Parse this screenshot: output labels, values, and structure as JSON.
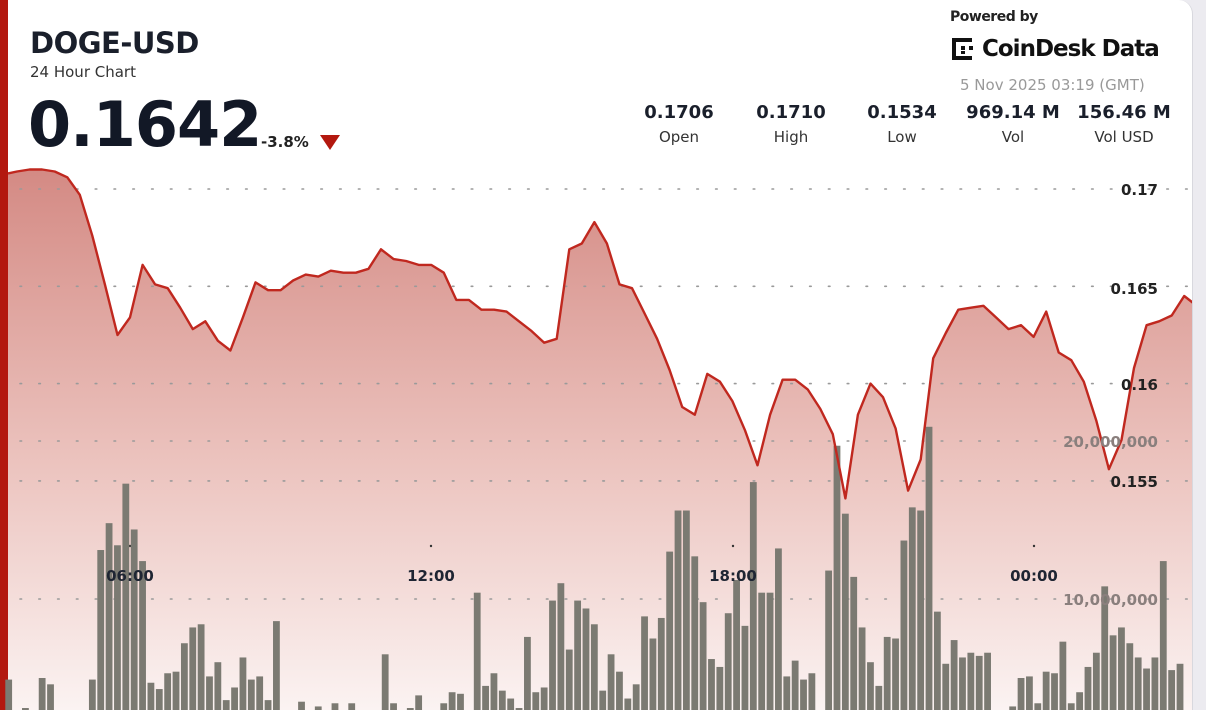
{
  "header": {
    "title": "DOGE-USD",
    "subtitle": "24 Hour Chart",
    "price": "0.1642",
    "change": "-3.8%",
    "change_direction": "down",
    "powered_by": "Powered by",
    "brand": "CoinDesk Data",
    "timestamp": "5 Nov 2025 03:19 (GMT)"
  },
  "stats": [
    {
      "value": "0.1706",
      "label": "Open"
    },
    {
      "value": "0.1710",
      "label": "High"
    },
    {
      "value": "0.1534",
      "label": "Low"
    },
    {
      "value": "969.14 M",
      "label": "Vol"
    },
    {
      "value": "156.46 M",
      "label": "Vol USD"
    }
  ],
  "colors": {
    "accent": "#b3180f",
    "line": "#c0281f",
    "fill_top": "#d48a84",
    "bars": "#7b7a72"
  },
  "chart_data": {
    "type": "area",
    "grid": true,
    "price_axis": {
      "ticks": [
        "0.17",
        "0.165",
        "0.16",
        "0.155"
      ],
      "tick_values": [
        0.17,
        0.165,
        0.16,
        0.155
      ]
    },
    "volume_axis": {
      "ticks": [
        "20,000,000",
        "10,000,000"
      ],
      "tick_values": [
        20000000,
        10000000
      ]
    },
    "time_axis": {
      "ticks": [
        "06:00",
        "12:00",
        "18:00",
        "00:00"
      ]
    },
    "price_series": {
      "start": "03:30",
      "interval_minutes": 15,
      "values": [
        0.1708,
        0.1709,
        0.171,
        0.171,
        0.1709,
        0.1706,
        0.1697,
        0.1676,
        0.1651,
        0.1625,
        0.1634,
        0.1661,
        0.1651,
        0.1649,
        0.1639,
        0.1628,
        0.1632,
        0.1622,
        0.1617,
        0.1634,
        0.1652,
        0.1648,
        0.1648,
        0.1653,
        0.1656,
        0.1655,
        0.1658,
        0.1657,
        0.1657,
        0.1659,
        0.1669,
        0.1664,
        0.1663,
        0.1661,
        0.1661,
        0.1657,
        0.1643,
        0.1643,
        0.1638,
        0.1638,
        0.1637,
        0.1632,
        0.1627,
        0.1621,
        0.1623,
        0.1669,
        0.1672,
        0.1683,
        0.1672,
        0.1651,
        0.1649,
        0.1636,
        0.1623,
        0.1607,
        0.1588,
        0.1584,
        0.1605,
        0.1601,
        0.1591,
        0.1576,
        0.1558,
        0.1584,
        0.1602,
        0.1602,
        0.1597,
        0.1587,
        0.1574,
        0.1541,
        0.1584,
        0.16,
        0.1593,
        0.1577,
        0.1545,
        0.1561,
        0.1613,
        0.1626,
        0.1638,
        0.1639,
        0.164,
        0.1634,
        0.1628,
        0.163,
        0.1624,
        0.1637,
        0.1616,
        0.1612,
        0.1601,
        0.1581,
        0.1556,
        0.1571,
        0.1608,
        0.163,
        0.1632,
        0.1635,
        0.1645,
        0.164
      ]
    },
    "volume_series": {
      "type": "bar",
      "start": "03:30",
      "interval_minutes": 10,
      "unit": "millions",
      "values": [
        4.9,
        2.0,
        3.1,
        2.2,
        5.0,
        4.6,
        1.8,
        2.4,
        1.5,
        2.6,
        4.9,
        13.1,
        14.8,
        13.4,
        17.3,
        14.4,
        12.4,
        4.7,
        4.3,
        5.3,
        5.4,
        7.2,
        8.2,
        8.4,
        5.1,
        6.0,
        3.6,
        4.4,
        6.3,
        4.9,
        5.1,
        3.6,
        8.6,
        2.3,
        1.9,
        3.5,
        2.1,
        3.2,
        2.0,
        3.4,
        2.2,
        3.4,
        1.6,
        2.1,
        1.8,
        6.5,
        3.4,
        2.4,
        3.1,
        3.9,
        2.5,
        2.2,
        3.4,
        4.1,
        4.0,
        2.6,
        10.4,
        4.5,
        5.3,
        4.2,
        3.7,
        3.1,
        7.6,
        4.1,
        4.4,
        9.9,
        11.0,
        6.8,
        9.9,
        9.4,
        8.4,
        4.2,
        6.5,
        5.4,
        3.7,
        4.6,
        8.9,
        7.5,
        8.8,
        13.0,
        15.6,
        15.6,
        12.7,
        9.8,
        6.2,
        5.7,
        9.1,
        11.2,
        8.3,
        17.4,
        10.4,
        10.4,
        13.2,
        5.1,
        6.1,
        4.9,
        5.3,
        2.4,
        11.8,
        19.7,
        15.4,
        11.4,
        8.2,
        6.0,
        4.5,
        7.6,
        7.5,
        13.7,
        15.8,
        15.6,
        20.9,
        9.2,
        5.9,
        7.4,
        6.3,
        6.6,
        6.4,
        6.6,
        2.1,
        1.8,
        3.2,
        5.0,
        5.1,
        3.4,
        5.4,
        5.3,
        7.3,
        3.4,
        4.1,
        5.7,
        6.6,
        10.8,
        7.7,
        8.2,
        7.2,
        6.3,
        5.6,
        6.3,
        12.4,
        5.5,
        5.9
      ]
    }
  }
}
